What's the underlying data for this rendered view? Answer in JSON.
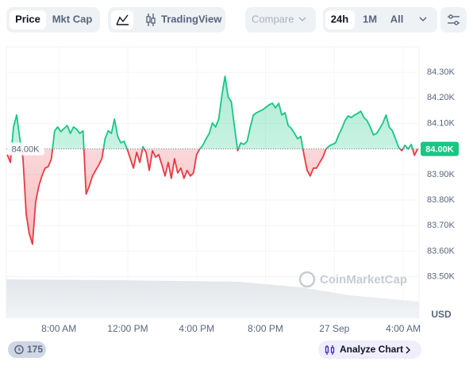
{
  "ui": {
    "price_tab": "Price",
    "mktcap_tab": "Mkt Cap",
    "tradingview": "TradingView",
    "compare": "Compare",
    "range_24h": "24h",
    "range_1m": "1M",
    "range_all": "All",
    "comments": "175",
    "analyze": "Analyze Chart",
    "watermark": "CoinMarketCap"
  },
  "chart_data": {
    "type": "line",
    "ylabel": "USD",
    "baseline": {
      "value": 84000,
      "label": "84.00K"
    },
    "last_label": "84.00K",
    "up_color": "#16c784",
    "down_color": "#ea3943",
    "grid": true,
    "xlim": [
      297,
      1735
    ],
    "xticks": [
      {
        "value": 480,
        "label": "8:00 AM"
      },
      {
        "value": 720,
        "label": "12:00 PM"
      },
      {
        "value": 960,
        "label": "4:00 PM"
      },
      {
        "value": 1200,
        "label": "8:00 PM"
      },
      {
        "value": 1440,
        "label": "27 Sep"
      },
      {
        "value": 1680,
        "label": "4:00 AM"
      }
    ],
    "ylim": [
      83340,
      84400
    ],
    "yticks": [
      {
        "value": 83500,
        "label": "83.50K"
      },
      {
        "value": 83600,
        "label": "83.60K"
      },
      {
        "value": 83700,
        "label": "83.70K"
      },
      {
        "value": 83800,
        "label": "83.80K"
      },
      {
        "value": 83900,
        "label": "83.90K"
      },
      {
        "value": 84000,
        "label": "84.00K"
      },
      {
        "value": 84100,
        "label": "84.10K"
      },
      {
        "value": 84200,
        "label": "84.20K"
      },
      {
        "value": 84300,
        "label": "84.30K"
      }
    ],
    "series": [
      {
        "name": "Price",
        "x": [
          300,
          311,
          322,
          333,
          344,
          355,
          366,
          377,
          388,
          399,
          410,
          421,
          432,
          443,
          454,
          465,
          476,
          487,
          498,
          509,
          520,
          531,
          542,
          553,
          564,
          575,
          586,
          597,
          608,
          619,
          630,
          641,
          652,
          663,
          674,
          685,
          696,
          707,
          718,
          729,
          740,
          751,
          762,
          773,
          784,
          795,
          806,
          817,
          828,
          839,
          850,
          861,
          872,
          883,
          894,
          905,
          916,
          927,
          938,
          949,
          960,
          971,
          982,
          993,
          1004,
          1015,
          1026,
          1037,
          1048,
          1059,
          1070,
          1081,
          1092,
          1103,
          1114,
          1125,
          1136,
          1147,
          1158,
          1169,
          1180,
          1191,
          1202,
          1213,
          1224,
          1235,
          1246,
          1257,
          1268,
          1279,
          1290,
          1301,
          1312,
          1323,
          1334,
          1345,
          1356,
          1367,
          1378,
          1389,
          1400,
          1411,
          1422,
          1433,
          1444,
          1455,
          1466,
          1477,
          1488,
          1499,
          1510,
          1521,
          1532,
          1543,
          1554,
          1565,
          1576,
          1587,
          1598,
          1609,
          1620,
          1631,
          1642,
          1653,
          1664,
          1675,
          1686,
          1697,
          1708,
          1719,
          1730
        ],
        "values": [
          83978,
          83947,
          84086,
          84133,
          84040,
          83962,
          83745,
          83668,
          83627,
          83792,
          83854,
          83894,
          83925,
          83931,
          83962,
          84071,
          84086,
          84068,
          84080,
          84092,
          84061,
          84086,
          84077,
          84061,
          84071,
          83823,
          83854,
          83894,
          83916,
          83937,
          83962,
          84040,
          84071,
          84061,
          84117,
          84049,
          84024,
          84030,
          84000,
          83962,
          83925,
          83987,
          83947,
          84009,
          83987,
          83916,
          83993,
          83968,
          83978,
          83937,
          83894,
          83947,
          83885,
          83962,
          83906,
          83925,
          83885,
          83916,
          83894,
          83906,
          83978,
          84000,
          84015,
          84040,
          84061,
          84102,
          84086,
          84117,
          84210,
          84285,
          84204,
          84185,
          84086,
          83993,
          84024,
          84018,
          84030,
          84086,
          84133,
          84142,
          84148,
          84154,
          84164,
          84173,
          84179,
          84161,
          84179,
          84133,
          84142,
          84092,
          84080,
          84061,
          84040,
          84049,
          83978,
          83916,
          83894,
          83925,
          83925,
          83947,
          83968,
          84000,
          84012,
          84018,
          84024,
          84055,
          84080,
          84111,
          84130,
          84123,
          84133,
          84139,
          84148,
          84123,
          84111,
          84086,
          84055,
          84061,
          84080,
          84102,
          84133,
          84086,
          84071,
          84040,
          84006,
          83993,
          84015,
          84000,
          84018,
          83975,
          84000
        ]
      }
    ]
  }
}
